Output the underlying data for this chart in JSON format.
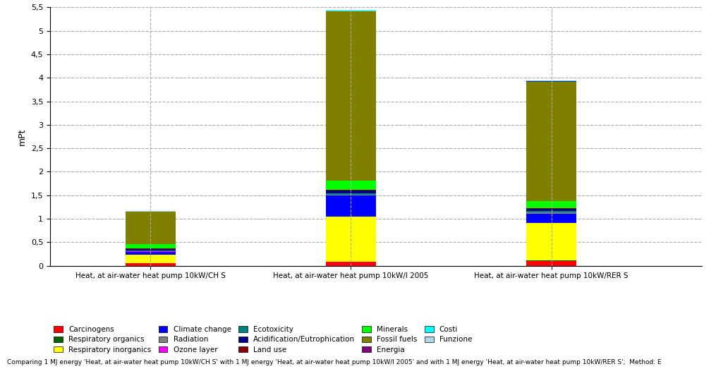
{
  "categories": [
    "Heat, at air-water heat pump 10kW/CH S",
    "Heat, at air-water heat pump 10kW/I 2005",
    "Heat, at air-water heat pump 10kW/RER S"
  ],
  "legend_labels": [
    "Carcinogens",
    "Respiratory organics",
    "Respiratory inorganics",
    "Climate change",
    "Radiation",
    "Ozone layer",
    "Ecotoxicity",
    "Acidification/Eutrophication",
    "Land use",
    "Minerals",
    "Fossil fuels",
    "Energia",
    "Costi",
    "Funzione"
  ],
  "colors": [
    "#ff0000",
    "#006400",
    "#ffff00",
    "#0000ff",
    "#808080",
    "#ff00ff",
    "#008080",
    "#000080",
    "#8b0000",
    "#00ff00",
    "#808000",
    "#800080",
    "#00ffff",
    "#add8e6"
  ],
  "bar_data": {
    "Carcinogens": [
      0.05,
      0.08,
      0.1
    ],
    "Respiratory organics": [
      0.01,
      0.01,
      0.01
    ],
    "Respiratory inorganics": [
      0.18,
      0.95,
      0.8
    ],
    "Climate change": [
      0.05,
      0.45,
      0.2
    ],
    "Radiation": [
      0.01,
      0.02,
      0.02
    ],
    "Ozone layer": [
      0.005,
      0.005,
      0.005
    ],
    "Ecotoxicity": [
      0.02,
      0.03,
      0.03
    ],
    "Acidification/Eutrophication": [
      0.03,
      0.05,
      0.04
    ],
    "Land use": [
      0.01,
      0.015,
      0.015
    ],
    "Minerals": [
      0.1,
      0.2,
      0.15
    ],
    "Fossil fuels": [
      0.68,
      3.6,
      2.55
    ],
    "Energia": [
      0.005,
      0.01,
      0.01
    ],
    "Costi": [
      0.005,
      0.01,
      0.01
    ],
    "Funzione": [
      0.005,
      0.01,
      0.01
    ]
  },
  "ylabel": "mPt",
  "ylim": [
    0,
    5.5
  ],
  "yticks": [
    0,
    0.5,
    1.0,
    1.5,
    2.0,
    2.5,
    3.0,
    3.5,
    4.0,
    4.5,
    5.0,
    5.5
  ],
  "ytick_labels": [
    "0",
    "0,5",
    "1",
    "1,5",
    "2",
    "2,5",
    "3",
    "3,5",
    "4",
    "4,5",
    "5",
    "5,5"
  ],
  "footnote": "Comparing 1 MJ energy 'Heat, at air-water heat pump 10kW/CH S' with 1 MJ energy 'Heat, at air-water heat pump 10kW/I 2005' and with 1 MJ energy 'Heat, at air-water heat pump 10kW/RER S';  Method: E",
  "bg_color": "#ffffff",
  "bar_width": 0.5,
  "bar_positions": [
    1,
    3,
    5
  ]
}
